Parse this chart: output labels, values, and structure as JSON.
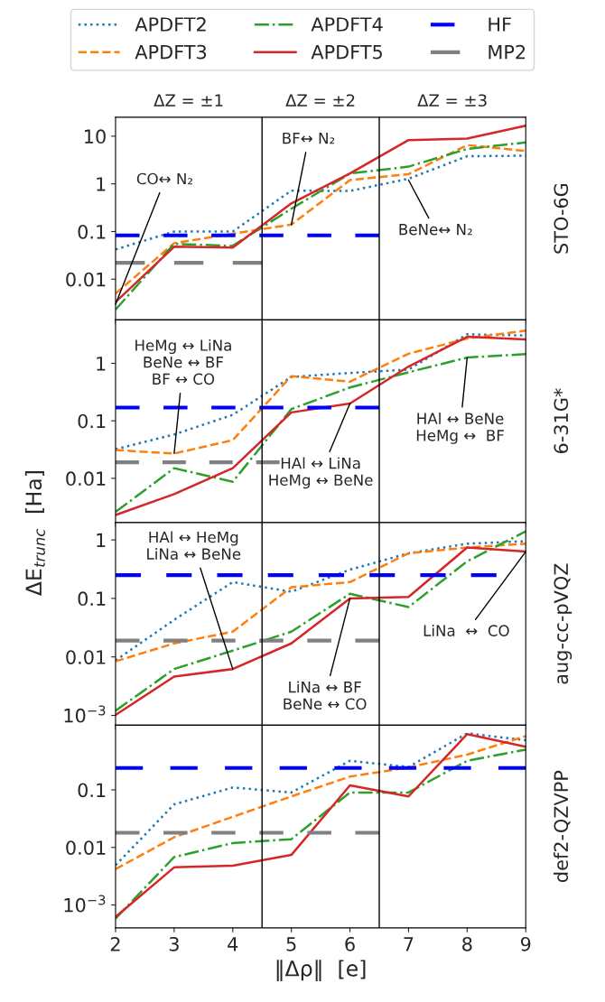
{
  "chart_data": [
    {
      "type": "line",
      "xlim": [
        2,
        9
      ],
      "xticks": [
        2,
        3,
        4,
        5,
        6,
        7,
        8,
        9
      ],
      "ylim": [
        0.0014,
        25
      ],
      "yticks": [
        0.01,
        0.1,
        1,
        10
      ],
      "log": "y",
      "tick_labels": "y",
      "grid": false,
      "legend": "top",
      "marker": "none",
      "y2label": "STO-6G",
      "ref_lines": [
        {
          "axis": "x",
          "value": 4.5,
          "color": "#000000"
        },
        {
          "axis": "x",
          "value": 6.5,
          "color": "#000000"
        }
      ],
      "annotations": [
        "ΔZ = ±1",
        "ΔZ = ±2",
        "ΔZ = ±3",
        {
          "text": "CO↔ N₂",
          "x": 2,
          "y": 0.003
        },
        {
          "text": "BF↔ N₂",
          "x": 5,
          "y": 0.14
        },
        {
          "text": "BeNe↔ N₂",
          "x": 7,
          "y": 1.2
        }
      ],
      "series": [
        {
          "name": "APDFT2",
          "color": "#1f77b4",
          "line_style": "dotted",
          "x": [
            2,
            3,
            4,
            5,
            6,
            7,
            8,
            9
          ],
          "values": [
            0.042,
            0.1,
            0.1,
            0.72,
            0.71,
            1.28,
            3.8,
            3.9
          ]
        },
        {
          "name": "APDFT3",
          "color": "#ff7f0e",
          "line_style": "dashed",
          "x": [
            2,
            3,
            4,
            5,
            6,
            7,
            8,
            9
          ],
          "values": [
            0.005,
            0.057,
            0.09,
            0.14,
            1.2,
            1.6,
            6.5,
            4.9
          ]
        },
        {
          "name": "APDFT4",
          "color": "#2ca02c",
          "line_style": "dashdot",
          "x": [
            2,
            3,
            4,
            5,
            6,
            7,
            8,
            9
          ],
          "values": [
            0.0023,
            0.055,
            0.05,
            0.3,
            1.65,
            2.3,
            5.4,
            7.4
          ]
        },
        {
          "name": "APDFT5",
          "color": "#d62728",
          "line_style": "solid",
          "x": [
            2,
            3,
            4,
            5,
            6,
            7,
            8,
            9
          ],
          "values": [
            0.0033,
            0.048,
            0.046,
            0.39,
            1.65,
            8.3,
            8.9,
            16.6
          ]
        },
        {
          "name": "HF",
          "color": "#0000ff",
          "line_style": "dashed",
          "x": [
            2,
            6.5
          ],
          "values": [
            0.083,
            0.083
          ]
        },
        {
          "name": "MP2",
          "color": "#808080",
          "line_style": "dashed",
          "x": [
            2,
            4.5
          ],
          "values": [
            0.022,
            0.022
          ]
        }
      ]
    },
    {
      "type": "line",
      "xlim": [
        2,
        9
      ],
      "xticks": [
        2,
        3,
        4,
        5,
        6,
        7,
        8,
        9
      ],
      "ylim": [
        0.0017,
        5.7
      ],
      "yticks": [
        0.01,
        0.1,
        1
      ],
      "log": "y",
      "tick_labels": "y",
      "grid": false,
      "marker": "none",
      "y2label": "6-31G*",
      "ylabel": "ΔE$_{trunc}$  [Ha]",
      "ref_lines": [
        {
          "axis": "x",
          "value": 4.5,
          "color": "#000000"
        },
        {
          "axis": "x",
          "value": 6.5,
          "color": "#000000"
        }
      ],
      "annotations": [
        {
          "text": "HeMg ↔ LiNa\nBeNe ↔ BF\nBF ↔ CO",
          "x": 3,
          "y": 0.027
        },
        {
          "text": "HAl ↔ LiNa\nHeMg ↔ BeNe",
          "x": 6,
          "y": 0.2
        },
        {
          "text": "HAl ↔ BeNe\nHeMg ↔  BF",
          "x": 8,
          "y": 1.26
        }
      ],
      "series": [
        {
          "color": "#1f77b4",
          "line_style": "dotted",
          "x": [
            2,
            3,
            4,
            5,
            6,
            7,
            8,
            9
          ],
          "values": [
            0.032,
            0.058,
            0.127,
            0.58,
            0.68,
            0.78,
            3.2,
            3.05
          ]
        },
        {
          "color": "#ff7f0e",
          "line_style": "dashed",
          "x": [
            2,
            3,
            4,
            5,
            6,
            7,
            8,
            9
          ],
          "values": [
            0.031,
            0.027,
            0.046,
            0.6,
            0.48,
            1.47,
            2.7,
            3.7
          ]
        },
        {
          "color": "#2ca02c",
          "line_style": "dashdot",
          "x": [
            2,
            3,
            4,
            5,
            6,
            7,
            8,
            9
          ],
          "values": [
            0.0026,
            0.015,
            0.0087,
            0.16,
            0.38,
            0.7,
            1.26,
            1.45
          ]
        },
        {
          "color": "#d62728",
          "line_style": "solid",
          "x": [
            2,
            3,
            4,
            5,
            6,
            7,
            8,
            9
          ],
          "values": [
            0.0023,
            0.0053,
            0.015,
            0.14,
            0.2,
            0.88,
            2.9,
            2.6
          ]
        },
        {
          "color": "#0000ff",
          "line_style": "dashed",
          "x": [
            2,
            6.5
          ],
          "values": [
            0.17,
            0.17
          ]
        },
        {
          "color": "#808080",
          "line_style": "dashed",
          "x": [
            2,
            4.8
          ],
          "values": [
            0.019,
            0.019
          ]
        }
      ]
    },
    {
      "type": "line",
      "xlim": [
        2,
        9
      ],
      "xticks": [
        2,
        3,
        4,
        5,
        6,
        7,
        8,
        9
      ],
      "ylim": [
        0.00068,
        1.98
      ],
      "yticks": [
        {
          "value": 0.001,
          "label": "10$^{−3}$"
        },
        0.01,
        0.1,
        1
      ],
      "log": "y",
      "tick_labels": "y",
      "grid": false,
      "marker": "none",
      "y2label": "aug-cc-pVQZ",
      "ref_lines": [
        {
          "axis": "x",
          "value": 4.5,
          "color": "#000000"
        },
        {
          "axis": "x",
          "value": 6.5,
          "color": "#000000"
        }
      ],
      "annotations": [
        {
          "text": "HAl ↔ HeMg\nLiNa ↔ BeNe",
          "x": 4,
          "y": 0.0062
        },
        {
          "text": "LiNa ↔ BF\nBeNe ↔ CO",
          "x": 6,
          "y": 0.1
        },
        {
          "text": "LiNa  ↔  CO",
          "x": 9,
          "y": 0.63
        }
      ],
      "series": [
        {
          "color": "#1f77b4",
          "line_style": "dotted",
          "x": [
            2,
            3,
            4,
            5,
            6,
            7,
            8,
            9
          ],
          "values": [
            0.0087,
            0.043,
            0.19,
            0.13,
            0.31,
            0.59,
            0.86,
            0.95
          ]
        },
        {
          "color": "#ff7f0e",
          "line_style": "dashed",
          "x": [
            2,
            3,
            4,
            5,
            6,
            7,
            8,
            9
          ],
          "values": [
            0.0084,
            0.017,
            0.027,
            0.155,
            0.19,
            0.59,
            0.74,
            0.86
          ]
        },
        {
          "color": "#2ca02c",
          "line_style": "dashdot",
          "x": [
            2,
            3,
            4,
            5,
            6,
            7,
            8,
            9
          ],
          "values": [
            0.0012,
            0.0062,
            0.0128,
            0.027,
            0.12,
            0.071,
            0.43,
            1.4
          ]
        },
        {
          "color": "#d62728",
          "line_style": "solid",
          "x": [
            2,
            3,
            4,
            5,
            6,
            7,
            8,
            9
          ],
          "values": [
            0.00102,
            0.0046,
            0.0062,
            0.017,
            0.1,
            0.106,
            0.74,
            0.63
          ]
        },
        {
          "color": "#0000ff",
          "line_style": "dashed",
          "x": [
            2,
            8.5
          ],
          "values": [
            0.25,
            0.25
          ]
        },
        {
          "color": "#808080",
          "line_style": "dashed",
          "x": [
            2,
            6.5
          ],
          "values": [
            0.019,
            0.019
          ]
        }
      ]
    },
    {
      "type": "line",
      "xlim": [
        2,
        9
      ],
      "xticks": [
        2,
        3,
        4,
        5,
        6,
        7,
        8,
        9
      ],
      "ylim": [
        0.0004,
        1.33
      ],
      "yticks": [
        {
          "value": 0.001,
          "label": "10$^{−3}$"
        },
        0.01,
        0.1
      ],
      "log": "y",
      "grid": false,
      "marker": "none",
      "y2label": "def2-QZVPP",
      "xlabel": "‖Δρ‖  [e]",
      "ref_lines": [
        {
          "axis": "x",
          "value": 4.5,
          "color": "#000000"
        },
        {
          "axis": "x",
          "value": 6.5,
          "color": "#000000"
        }
      ],
      "series": [
        {
          "color": "#1f77b4",
          "line_style": "dotted",
          "x": [
            2,
            3,
            4,
            5,
            6,
            7,
            8,
            9
          ],
          "values": [
            0.0049,
            0.056,
            0.11,
            0.09,
            0.32,
            0.25,
            0.96,
            0.73
          ]
        },
        {
          "color": "#ff7f0e",
          "line_style": "dashed",
          "x": [
            2,
            3,
            4,
            5,
            6,
            7,
            8,
            9
          ],
          "values": [
            0.0042,
            0.015,
            0.034,
            0.077,
            0.17,
            0.245,
            0.41,
            0.86
          ]
        },
        {
          "color": "#2ca02c",
          "line_style": "dashdot",
          "x": [
            2,
            3,
            4,
            5,
            6,
            7,
            8,
            9
          ],
          "values": [
            0.00058,
            0.0068,
            0.0119,
            0.0139,
            0.09,
            0.09,
            0.32,
            0.5
          ]
        },
        {
          "color": "#d62728",
          "line_style": "solid",
          "x": [
            2,
            3,
            4,
            5,
            6,
            7,
            8,
            9
          ],
          "values": [
            0.00062,
            0.0045,
            0.0048,
            0.0074,
            0.12,
            0.077,
            0.93,
            0.56
          ]
        },
        {
          "color": "#0000ff",
          "line_style": "dashed",
          "x": [
            2,
            9
          ],
          "values": [
            0.24,
            0.24
          ]
        },
        {
          "color": "#808080",
          "line_style": "dashed",
          "x": [
            2,
            6.5
          ],
          "values": [
            0.018,
            0.018
          ]
        }
      ]
    }
  ]
}
